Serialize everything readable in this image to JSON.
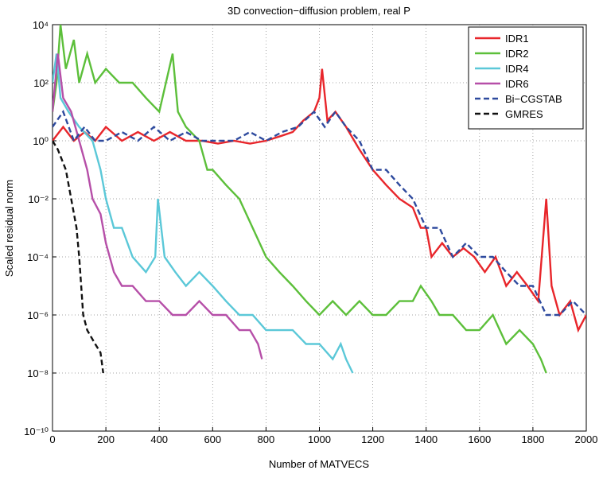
{
  "chart_data": {
    "type": "line",
    "title": "3D convection−diffusion problem, real P",
    "x_label": "Number of MATVECS",
    "y_label": "Scaled residual norm",
    "y_scale": "log",
    "grid": true,
    "legend_position": "upper-right",
    "xlim": [
      0,
      2000
    ],
    "xticks": [
      0,
      200,
      400,
      600,
      800,
      1000,
      1200,
      1400,
      1600,
      1800,
      2000
    ],
    "ylim": [
      1e-10,
      10000
    ],
    "yticks": [
      {
        "value": 1e-10,
        "label": "10⁻¹⁰"
      },
      {
        "value": 1e-08,
        "label": "10⁻⁸"
      },
      {
        "value": 1e-06,
        "label": "10⁻⁶"
      },
      {
        "value": 0.0001,
        "label": "10⁻⁴"
      },
      {
        "value": 0.01,
        "label": "10⁻²"
      },
      {
        "value": 1,
        "label": "10⁰"
      },
      {
        "value": 100,
        "label": "10²"
      },
      {
        "value": 10000,
        "label": "10⁴"
      }
    ],
    "series": [
      {
        "name": "IDR1",
        "color": "#e8262b",
        "line_style": "solid",
        "x": [
          0,
          40,
          80,
          120,
          160,
          200,
          260,
          320,
          380,
          440,
          500,
          560,
          620,
          680,
          740,
          800,
          860,
          900,
          940,
          980,
          1000,
          1010,
          1030,
          1060,
          1100,
          1150,
          1200,
          1250,
          1300,
          1350,
          1380,
          1400,
          1420,
          1460,
          1500,
          1540,
          1580,
          1620,
          1660,
          1700,
          1740,
          1780,
          1820,
          1850,
          1870,
          1900,
          1940,
          1970,
          2000
        ],
        "values": [
          1,
          3,
          1,
          2,
          1,
          3,
          1,
          2,
          1,
          2,
          1,
          1,
          0.8,
          1,
          0.8,
          1,
          1.5,
          2,
          5,
          10,
          30,
          300,
          5,
          10,
          3,
          0.5,
          0.1,
          0.03,
          0.01,
          0.005,
          0.001,
          0.001,
          0.0001,
          0.0003,
          0.0001,
          0.0002,
          0.0001,
          3e-05,
          0.0001,
          1e-05,
          3e-05,
          1e-05,
          3e-06,
          0.01,
          1e-05,
          1e-06,
          3e-06,
          3e-07,
          1e-06
        ]
      },
      {
        "name": "IDR2",
        "color": "#5cbf3a",
        "line_style": "solid",
        "x": [
          0,
          15,
          30,
          50,
          80,
          100,
          130,
          160,
          200,
          250,
          300,
          350,
          400,
          450,
          470,
          500,
          550,
          580,
          600,
          650,
          700,
          750,
          800,
          850,
          900,
          950,
          1000,
          1050,
          1100,
          1150,
          1200,
          1250,
          1300,
          1350,
          1380,
          1420,
          1450,
          1500,
          1550,
          1600,
          1650,
          1700,
          1750,
          1800,
          1830,
          1850
        ],
        "values": [
          10,
          100,
          10000,
          300,
          3000,
          100,
          1000,
          100,
          300,
          100,
          100,
          30,
          10,
          1000,
          10,
          3,
          1,
          0.1,
          0.1,
          0.03,
          0.01,
          0.001,
          0.0001,
          3e-05,
          1e-05,
          3e-06,
          1e-06,
          3e-06,
          1e-06,
          3e-06,
          1e-06,
          1e-06,
          3e-06,
          3e-06,
          1e-05,
          3e-06,
          1e-06,
          1e-06,
          3e-07,
          3e-07,
          1e-06,
          1e-07,
          3e-07,
          1e-07,
          3e-08,
          1e-08
        ]
      },
      {
        "name": "IDR4",
        "color": "#5bc8d8",
        "line_style": "solid",
        "x": [
          0,
          15,
          30,
          60,
          100,
          150,
          180,
          200,
          230,
          260,
          300,
          350,
          385,
          395,
          420,
          460,
          500,
          550,
          600,
          650,
          700,
          750,
          800,
          850,
          900,
          950,
          1000,
          1050,
          1080,
          1100,
          1125
        ],
        "values": [
          100,
          1000,
          30,
          10,
          3,
          1,
          0.1,
          0.01,
          0.001,
          0.001,
          0.0001,
          3e-05,
          0.0001,
          0.01,
          0.0001,
          3e-05,
          1e-05,
          3e-05,
          1e-05,
          3e-06,
          1e-06,
          1e-06,
          3e-07,
          3e-07,
          3e-07,
          1e-07,
          1e-07,
          3e-08,
          1e-07,
          3e-08,
          1e-08
        ]
      },
      {
        "name": "IDR6",
        "color": "#b64fa8",
        "line_style": "solid",
        "x": [
          0,
          20,
          40,
          70,
          100,
          130,
          150,
          180,
          200,
          230,
          260,
          300,
          350,
          400,
          450,
          500,
          550,
          600,
          650,
          700,
          740,
          770,
          785
        ],
        "values": [
          10,
          1000,
          30,
          10,
          1,
          0.1,
          0.01,
          0.003,
          0.0003,
          3e-05,
          1e-05,
          1e-05,
          3e-06,
          3e-06,
          1e-06,
          1e-06,
          3e-06,
          1e-06,
          1e-06,
          3e-07,
          3e-07,
          1e-07,
          3e-08
        ]
      },
      {
        "name": "Bi−CGSTAB",
        "color": "#2e4a9e",
        "line_style": "dashed",
        "x": [
          0,
          40,
          80,
          120,
          160,
          200,
          260,
          320,
          380,
          440,
          500,
          560,
          620,
          680,
          740,
          800,
          860,
          920,
          980,
          1020,
          1060,
          1100,
          1150,
          1200,
          1250,
          1300,
          1350,
          1400,
          1450,
          1500,
          1550,
          1600,
          1650,
          1700,
          1750,
          1800,
          1850,
          1900,
          1950,
          2000
        ],
        "values": [
          3,
          10,
          1,
          3,
          1,
          1,
          2,
          1,
          3,
          1,
          2,
          1,
          1,
          1,
          2,
          1,
          2,
          3,
          10,
          3,
          10,
          3,
          1,
          0.1,
          0.1,
          0.03,
          0.01,
          0.001,
          0.001,
          0.0001,
          0.0003,
          0.0001,
          0.0001,
          3e-05,
          1e-05,
          1e-05,
          1e-06,
          1e-06,
          3e-06,
          1e-06
        ]
      },
      {
        "name": "GMRES",
        "color": "#111111",
        "line_style": "dashed",
        "x": [
          0,
          20,
          50,
          70,
          90,
          100,
          115,
          130,
          160,
          180,
          190
        ],
        "values": [
          1,
          0.5,
          0.1,
          0.01,
          0.001,
          0.0001,
          1e-06,
          3e-07,
          1e-07,
          5e-08,
          1e-08
        ]
      }
    ]
  }
}
